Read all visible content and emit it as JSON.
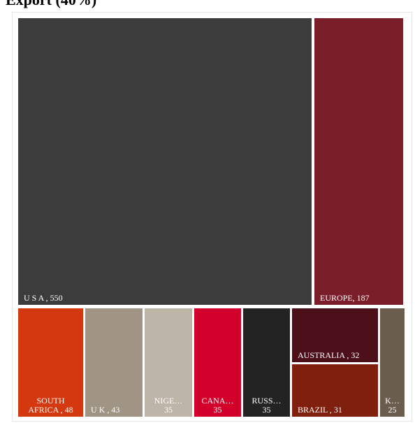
{
  "chart_data": {
    "type": "treemap",
    "title": "Export (40%)",
    "items": [
      {
        "name": "U S A",
        "value": 550,
        "label": [
          "U S A , 550"
        ],
        "color": "#3c3c3c",
        "align": "start"
      },
      {
        "name": "EUROPE",
        "value": 187,
        "label": [
          "EUROPE, 187"
        ],
        "color": "#7a1e29",
        "align": "start"
      },
      {
        "name": "SOUTH AFRICA",
        "value": 48,
        "label": [
          "SOUTH",
          "AFRICA , 48"
        ],
        "color": "#d4380e",
        "align": "middle"
      },
      {
        "name": "U K",
        "value": 43,
        "label": [
          "U K , 43"
        ],
        "color": "#a09584",
        "align": "start"
      },
      {
        "name": "NIGE…",
        "value": 35,
        "label": [
          "NIGE…",
          "35"
        ],
        "color": "#bdb5a7",
        "align": "middle"
      },
      {
        "name": "CANA…",
        "value": 35,
        "label": [
          "CANA…",
          "35"
        ],
        "color": "#d4002c",
        "align": "middle"
      },
      {
        "name": "RUSS…",
        "value": 35,
        "label": [
          "RUSS…",
          "35"
        ],
        "color": "#232323",
        "align": "middle"
      },
      {
        "name": "AUSTRALIA",
        "value": 32,
        "label": [
          "AUSTRALIA , 32"
        ],
        "color": "#4d0f1a",
        "align": "start"
      },
      {
        "name": "BRAZIL",
        "value": 31,
        "label": [
          "BRAZIL , 31"
        ],
        "color": "#7f1f0d",
        "align": "start"
      },
      {
        "name": "K…",
        "value": 25,
        "label": [
          "K…",
          "25"
        ],
        "color": "#6b5d4d",
        "align": "middle"
      }
    ]
  }
}
